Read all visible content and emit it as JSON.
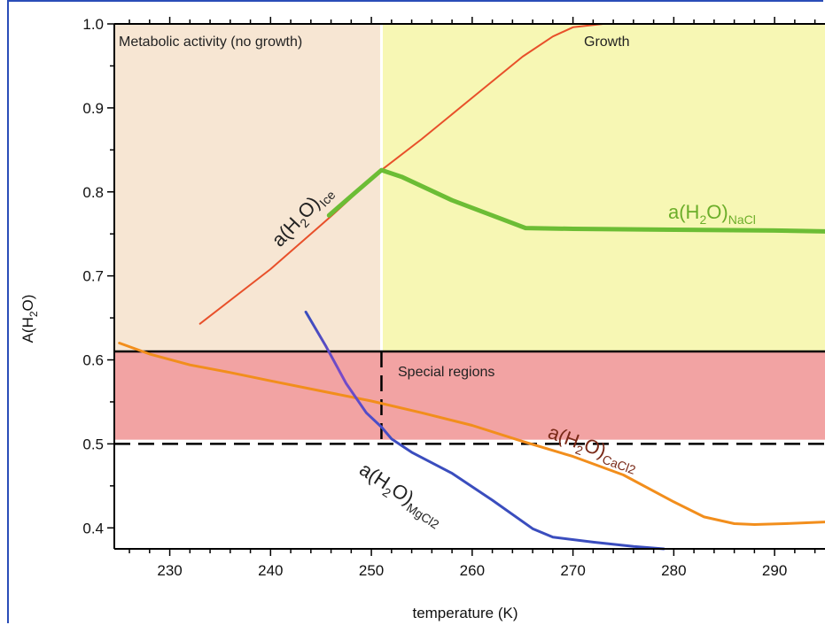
{
  "chart_data": {
    "type": "line",
    "xlabel": "temperature (K)",
    "ylabel": "A(H2O)",
    "xlim": [
      224.5,
      295
    ],
    "ylim": [
      0.375,
      1.0
    ],
    "x_ticks": [
      230,
      240,
      250,
      260,
      270,
      280,
      290
    ],
    "y_ticks": [
      0.4,
      0.5,
      0.6,
      0.7,
      0.8,
      0.9,
      1.0
    ],
    "grid": false,
    "regions": [
      {
        "label": "Metabolic activity (no growth)",
        "x_range": [
          224.5,
          251
        ],
        "y_range": [
          0.61,
          1.0
        ],
        "color": "#f7e6d3"
      },
      {
        "label": "Growth",
        "x_range": [
          251,
          295
        ],
        "y_range": [
          0.61,
          1.0
        ],
        "color": "#f7f7b4"
      },
      {
        "label": "Special regions",
        "x_range": [
          224.5,
          295
        ],
        "y_range": [
          0.505,
          0.61
        ],
        "color": "#f2a3a3"
      }
    ],
    "reference_lines": [
      {
        "orientation": "horizontal",
        "y": 0.61,
        "style": "solid",
        "color": "#000000"
      },
      {
        "orientation": "horizontal",
        "y": 0.5,
        "style": "dashed",
        "color": "#000000"
      },
      {
        "orientation": "vertical",
        "x": 251,
        "y_range": [
          0.5,
          0.61
        ],
        "style": "dashed",
        "color": "#000000"
      }
    ],
    "series": [
      {
        "key": "ice",
        "label": "a(H",
        "sub1": "2",
        "label_mid": "O)",
        "sub2": "Ice",
        "color": "#e8502a",
        "width": 2,
        "x": [
          233,
          240,
          246,
          251,
          255,
          260,
          265,
          268,
          270,
          273,
          280,
          290,
          294
        ],
        "y": [
          0.643,
          0.708,
          0.771,
          0.826,
          0.863,
          0.912,
          0.961,
          0.985,
          0.996,
          1.0,
          1.0,
          1.0,
          1.0
        ]
      },
      {
        "key": "nacl",
        "label": "a(H",
        "sub1": "2",
        "label_mid": "O)",
        "sub2": "NaCl",
        "color": "#6cbd35",
        "width": 5,
        "x": [
          245.8,
          248,
          251,
          253,
          258,
          265.3,
          270,
          280,
          290,
          295
        ],
        "y": [
          0.772,
          0.795,
          0.826,
          0.818,
          0.79,
          0.757,
          0.756,
          0.755,
          0.754,
          0.753
        ]
      },
      {
        "key": "cacl2",
        "label": "a(H",
        "sub1": "2",
        "label_mid": "O)",
        "sub2": "CaCl2",
        "color": "#f28e1c",
        "width": 3,
        "x": [
          225,
          228,
          232,
          236,
          240,
          245,
          250,
          255,
          260,
          265,
          270,
          275,
          280,
          283,
          286,
          288,
          291,
          295
        ],
        "y": [
          0.62,
          0.607,
          0.594,
          0.585,
          0.575,
          0.563,
          0.551,
          0.537,
          0.522,
          0.503,
          0.485,
          0.463,
          0.431,
          0.413,
          0.405,
          0.404,
          0.405,
          0.407
        ]
      },
      {
        "key": "mgcl2",
        "label": "a(H",
        "sub1": "2",
        "label_mid": "O)",
        "sub2": "MgCl2",
        "color": "#3a4dbe",
        "width": 3,
        "x": [
          243.5,
          245.5,
          247.5,
          249.5,
          251,
          252,
          254,
          258,
          262,
          266,
          268,
          272,
          276,
          279
        ],
        "y": [
          0.657,
          0.616,
          0.572,
          0.537,
          0.52,
          0.506,
          0.49,
          0.465,
          0.433,
          0.399,
          0.389,
          0.383,
          0.378,
          0.375
        ]
      }
    ]
  }
}
